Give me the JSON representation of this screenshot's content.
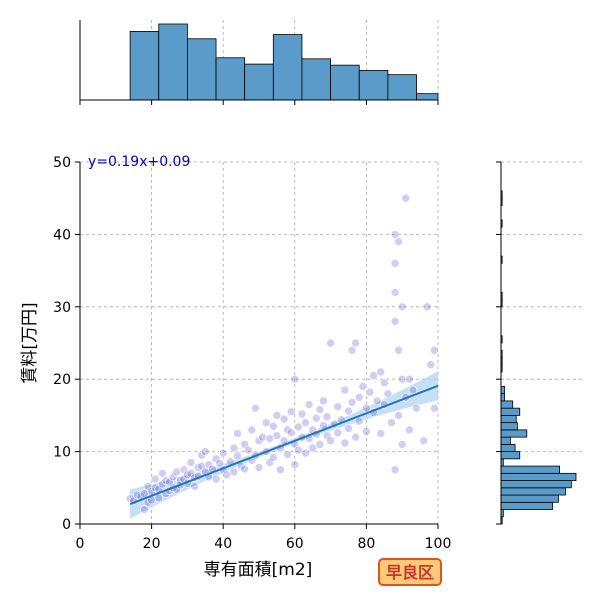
{
  "chart_data": {
    "type": "scatter",
    "title": "",
    "xlabel": "専有面積[m2]",
    "ylabel": "賃料[万円]",
    "xlim": [
      0,
      100
    ],
    "ylim": [
      0,
      50
    ],
    "x_ticks": [
      0,
      20,
      40,
      60,
      80,
      100
    ],
    "y_ticks": [
      0,
      10,
      20,
      30,
      40,
      50
    ],
    "grid": true,
    "equation_text": "y=0.19x+0.09",
    "regression": {
      "slope": 0.19,
      "intercept": 0.09,
      "x_range": [
        14,
        100
      ]
    },
    "region_label": "早良区",
    "colors": {
      "point": "#5a4fcf",
      "hist": "#5a9bc9",
      "regression_line": "#1f77b4",
      "confidence_band": "#aed3ee",
      "equation_text": "#0000cc",
      "badge_fill": "#ffc97a",
      "badge_border": "#e0541c",
      "badge_text": "#c0392b"
    },
    "points": [
      [
        14,
        3.5
      ],
      [
        15,
        3.2
      ],
      [
        16,
        4.0
      ],
      [
        17,
        3.8
      ],
      [
        18,
        4.2
      ],
      [
        18,
        2.0
      ],
      [
        19,
        3.0
      ],
      [
        19,
        5.2
      ],
      [
        20,
        4.5
      ],
      [
        20,
        3.3
      ],
      [
        21,
        5.0
      ],
      [
        21,
        6.2
      ],
      [
        22,
        4.8
      ],
      [
        22,
        3.6
      ],
      [
        23,
        5.5
      ],
      [
        23,
        7.0
      ],
      [
        24,
        4.2
      ],
      [
        24,
        6.0
      ],
      [
        25,
        5.8
      ],
      [
        25,
        4.6
      ],
      [
        26,
        6.5
      ],
      [
        26,
        5.0
      ],
      [
        27,
        7.2
      ],
      [
        27,
        4.8
      ],
      [
        28,
        6.0
      ],
      [
        28,
        5.4
      ],
      [
        29,
        7.5
      ],
      [
        29,
        6.2
      ],
      [
        30,
        5.6
      ],
      [
        30,
        6.8
      ],
      [
        31,
        7.0
      ],
      [
        31,
        8.5
      ],
      [
        32,
        6.4
      ],
      [
        32,
        5.2
      ],
      [
        33,
        7.8
      ],
      [
        33,
        6.6
      ],
      [
        34,
        8.0
      ],
      [
        34,
        9.5
      ],
      [
        35,
        7.2
      ],
      [
        35,
        10.0
      ],
      [
        36,
        6.5
      ],
      [
        36,
        8.2
      ],
      [
        37,
        7.6
      ],
      [
        38,
        9.0
      ],
      [
        38,
        6.2
      ],
      [
        39,
        8.4
      ],
      [
        40,
        7.5
      ],
      [
        40,
        9.8
      ],
      [
        41,
        6.8
      ],
      [
        42,
        8.6
      ],
      [
        43,
        10.5
      ],
      [
        43,
        7.2
      ],
      [
        44,
        12.5
      ],
      [
        44,
        9.4
      ],
      [
        45,
        8.0
      ],
      [
        46,
        11.0
      ],
      [
        46,
        7.6
      ],
      [
        47,
        10.2
      ],
      [
        48,
        13.0
      ],
      [
        48,
        8.8
      ],
      [
        49,
        16.0
      ],
      [
        49,
        9.5
      ],
      [
        50,
        11.5
      ],
      [
        50,
        7.8
      ],
      [
        51,
        12.0
      ],
      [
        52,
        10.0
      ],
      [
        52,
        14.0
      ],
      [
        53,
        8.5
      ],
      [
        53,
        11.8
      ],
      [
        54,
        13.5
      ],
      [
        54,
        9.2
      ],
      [
        55,
        12.2
      ],
      [
        55,
        15.0
      ],
      [
        56,
        10.5
      ],
      [
        56,
        7.5
      ],
      [
        57,
        11.5
      ],
      [
        57,
        14.5
      ],
      [
        58,
        9.6
      ],
      [
        58,
        13.0
      ],
      [
        59,
        12.6
      ],
      [
        59,
        15.5
      ],
      [
        60,
        20.0
      ],
      [
        60,
        11.0
      ],
      [
        60,
        8.2
      ],
      [
        61,
        13.4
      ],
      [
        61,
        10.2
      ],
      [
        62,
        15.2
      ],
      [
        62,
        12.0
      ],
      [
        63,
        9.8
      ],
      [
        63,
        14.0
      ],
      [
        64,
        11.8
      ],
      [
        64,
        16.5
      ],
      [
        65,
        13.0
      ],
      [
        65,
        10.5
      ],
      [
        66,
        14.6
      ],
      [
        66,
        12.4
      ],
      [
        67,
        15.8
      ],
      [
        67,
        11.0
      ],
      [
        68,
        13.6
      ],
      [
        68,
        17.0
      ],
      [
        69,
        12.2
      ],
      [
        69,
        14.8
      ],
      [
        70,
        25.0
      ],
      [
        70,
        11.5
      ],
      [
        71,
        13.8
      ],
      [
        72,
        16.2
      ],
      [
        72,
        12.6
      ],
      [
        73,
        14.4
      ],
      [
        74,
        18.5
      ],
      [
        74,
        11.2
      ],
      [
        75,
        15.6
      ],
      [
        75,
        13.2
      ],
      [
        76,
        24.0
      ],
      [
        76,
        16.8
      ],
      [
        77,
        25.0
      ],
      [
        77,
        12.0
      ],
      [
        78,
        17.5
      ],
      [
        78,
        14.2
      ],
      [
        79,
        19.0
      ],
      [
        80,
        16.0
      ],
      [
        80,
        12.8
      ],
      [
        81,
        18.2
      ],
      [
        82,
        15.4
      ],
      [
        82,
        20.5
      ],
      [
        83,
        17.0
      ],
      [
        84,
        12.5
      ],
      [
        84,
        21.0
      ],
      [
        85,
        16.5
      ],
      [
        85,
        19.5
      ],
      [
        86,
        18.0
      ],
      [
        87,
        14.0
      ],
      [
        88,
        7.5
      ],
      [
        88,
        36.0
      ],
      [
        88,
        40.0
      ],
      [
        88,
        28.0
      ],
      [
        88,
        32.0
      ],
      [
        89,
        39.0
      ],
      [
        89,
        15.0
      ],
      [
        89,
        24.0
      ],
      [
        90,
        30.0
      ],
      [
        90,
        11.0
      ],
      [
        90,
        20.0
      ],
      [
        91,
        45.0
      ],
      [
        91,
        17.5
      ],
      [
        92,
        13.0
      ],
      [
        92,
        20.0
      ],
      [
        93,
        18.5
      ],
      [
        94,
        16.0
      ],
      [
        96,
        11.5
      ],
      [
        97,
        30.0
      ],
      [
        98,
        22.0
      ],
      [
        99,
        24.0
      ],
      [
        99,
        16.0
      ]
    ],
    "top_histogram": {
      "bin_edges": [
        14,
        22,
        30,
        38,
        46,
        54,
        62,
        70,
        78,
        86,
        94,
        100
      ],
      "counts": [
        65,
        72,
        58,
        40,
        34,
        62,
        39,
        33,
        28,
        24,
        6
      ]
    },
    "right_histogram": {
      "bin_edges": [
        0,
        1,
        2,
        3,
        4,
        5,
        6,
        7,
        8,
        9,
        10,
        11,
        12,
        13,
        14,
        15,
        16,
        17,
        18,
        19,
        20,
        21,
        22,
        23,
        24,
        25,
        26,
        27,
        28,
        29,
        30,
        31,
        32,
        33,
        34,
        35,
        36,
        37,
        38,
        39,
        40,
        41,
        42,
        43,
        44,
        45,
        46
      ],
      "counts": [
        1,
        2,
        44,
        49,
        55,
        60,
        64,
        50,
        2,
        16,
        12,
        8,
        22,
        14,
        13,
        16,
        10,
        3,
        3,
        0,
        0,
        1,
        1,
        1,
        0,
        1,
        0,
        0,
        0,
        0,
        1,
        1,
        0,
        0,
        0,
        0,
        1,
        0,
        0,
        0,
        0,
        1,
        0,
        0,
        1,
        1
      ]
    }
  }
}
